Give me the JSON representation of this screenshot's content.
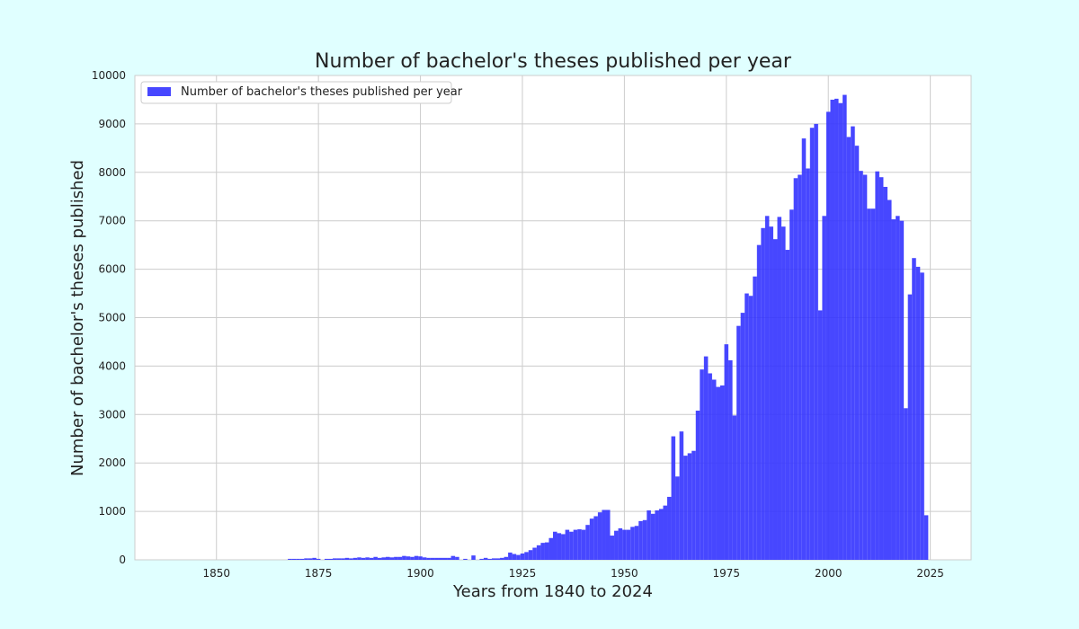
{
  "chart_data": {
    "type": "bar",
    "title": "Number of bachelor's theses published per year",
    "xlabel": "Years from 1840 to 2024",
    "ylabel": "Number of bachelor's theses published",
    "xlim": [
      1830,
      2035
    ],
    "ylim": [
      0,
      10000
    ],
    "x_ticks": [
      1850,
      1875,
      1900,
      1925,
      1950,
      1975,
      2000,
      2025
    ],
    "y_ticks": [
      0,
      1000,
      2000,
      3000,
      4000,
      5000,
      6000,
      7000,
      8000,
      9000,
      10000
    ],
    "grid": true,
    "legend_position": "top-left",
    "colors": {
      "bar": "#3333ff",
      "background": "#e0ffff",
      "plot_bg": "#ffffff",
      "grid": "#cccccc"
    },
    "series": [
      {
        "name": "Number of bachelor's theses published per year",
        "x": [
          1840,
          1841,
          1842,
          1843,
          1844,
          1845,
          1846,
          1847,
          1848,
          1849,
          1850,
          1851,
          1852,
          1853,
          1854,
          1855,
          1856,
          1857,
          1858,
          1859,
          1860,
          1861,
          1862,
          1863,
          1864,
          1865,
          1866,
          1867,
          1868,
          1869,
          1870,
          1871,
          1872,
          1873,
          1874,
          1875,
          1876,
          1877,
          1878,
          1879,
          1880,
          1881,
          1882,
          1883,
          1884,
          1885,
          1886,
          1887,
          1888,
          1889,
          1890,
          1891,
          1892,
          1893,
          1894,
          1895,
          1896,
          1897,
          1898,
          1899,
          1900,
          1901,
          1902,
          1903,
          1904,
          1905,
          1906,
          1907,
          1908,
          1909,
          1910,
          1911,
          1912,
          1913,
          1914,
          1915,
          1916,
          1917,
          1918,
          1919,
          1920,
          1921,
          1922,
          1923,
          1924,
          1925,
          1926,
          1927,
          1928,
          1929,
          1930,
          1931,
          1932,
          1933,
          1934,
          1935,
          1936,
          1937,
          1938,
          1939,
          1940,
          1941,
          1942,
          1943,
          1944,
          1945,
          1946,
          1947,
          1948,
          1949,
          1950,
          1951,
          1952,
          1953,
          1954,
          1955,
          1956,
          1957,
          1958,
          1959,
          1960,
          1961,
          1962,
          1963,
          1964,
          1965,
          1966,
          1967,
          1968,
          1969,
          1970,
          1971,
          1972,
          1973,
          1974,
          1975,
          1976,
          1977,
          1978,
          1979,
          1980,
          1981,
          1982,
          1983,
          1984,
          1985,
          1986,
          1987,
          1988,
          1989,
          1990,
          1991,
          1992,
          1993,
          1994,
          1995,
          1996,
          1997,
          1998,
          1999,
          2000,
          2001,
          2002,
          2003,
          2004,
          2005,
          2006,
          2007,
          2008,
          2009,
          2010,
          2011,
          2012,
          2013,
          2014,
          2015,
          2016,
          2017,
          2018,
          2019,
          2020,
          2021,
          2022,
          2023,
          2024
        ],
        "values": [
          0,
          0,
          0,
          0,
          0,
          0,
          0,
          0,
          0,
          0,
          0,
          0,
          0,
          0,
          0,
          0,
          0,
          0,
          0,
          0,
          0,
          0,
          0,
          0,
          0,
          0,
          0,
          0,
          20,
          20,
          20,
          20,
          30,
          30,
          40,
          20,
          0,
          20,
          20,
          30,
          30,
          30,
          40,
          30,
          40,
          50,
          40,
          50,
          40,
          60,
          40,
          50,
          60,
          50,
          60,
          60,
          80,
          70,
          60,
          80,
          70,
          50,
          40,
          40,
          40,
          40,
          40,
          40,
          80,
          60,
          0,
          20,
          0,
          90,
          0,
          20,
          40,
          20,
          30,
          30,
          40,
          60,
          150,
          120,
          100,
          130,
          160,
          200,
          250,
          300,
          350,
          360,
          450,
          580,
          550,
          530,
          620,
          580,
          620,
          630,
          620,
          720,
          850,
          900,
          980,
          1030,
          1030,
          500,
          600,
          650,
          620,
          620,
          680,
          700,
          800,
          820,
          1020,
          950,
          1020,
          1050,
          1120,
          1300,
          2550,
          1720,
          2650,
          2150,
          2200,
          2250,
          3080,
          3930,
          4200,
          3850,
          3720,
          3570,
          3600,
          4450,
          4120,
          2980,
          4830,
          5100,
          5500,
          5450,
          5850,
          6500,
          6850,
          7100,
          6880,
          6620,
          7080,
          6880,
          6400,
          7230,
          7880,
          7950,
          8700,
          8080,
          8920,
          9000,
          5150,
          7100,
          9250,
          9500,
          9520,
          9430,
          9600,
          8730,
          8950,
          8550,
          8030,
          7950,
          7250,
          7250,
          8020,
          7900,
          7700,
          7430,
          7030,
          7100,
          7000,
          3130,
          5480,
          6230,
          6050,
          5930,
          920
        ]
      }
    ]
  }
}
